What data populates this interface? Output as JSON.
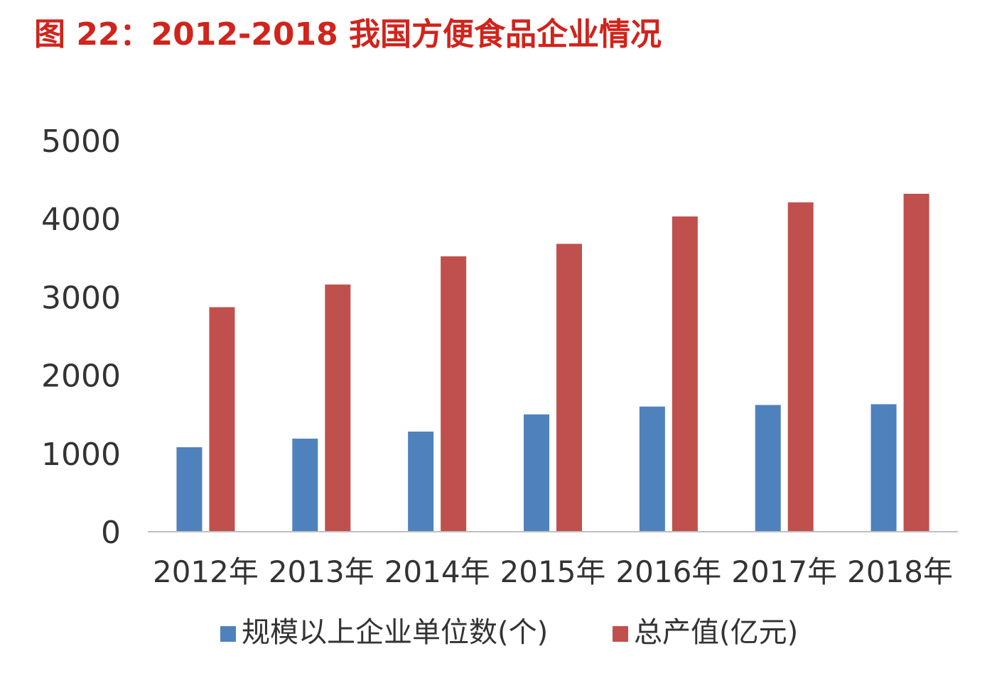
{
  "title": "图 22：2012-2018 我国方便食品企业情况",
  "chart_data": {
    "type": "bar",
    "categories": [
      "2012年",
      "2013年",
      "2014年",
      "2015年",
      "2016年",
      "2017年",
      "2018年"
    ],
    "series": [
      {
        "name": "规模以上企业单位数(个)",
        "color": "#4f81bd",
        "values": [
          1080,
          1190,
          1280,
          1500,
          1600,
          1620,
          1630
        ]
      },
      {
        "name": "总产值(亿元)",
        "color": "#c0504d",
        "values": [
          2870,
          3160,
          3520,
          3680,
          4030,
          4210,
          4320
        ]
      }
    ],
    "yticks": [
      "0",
      "1000",
      "2000",
      "3000",
      "4000",
      "5000"
    ],
    "ylim": [
      0,
      5000
    ],
    "grid": false,
    "legend": "bottom"
  }
}
